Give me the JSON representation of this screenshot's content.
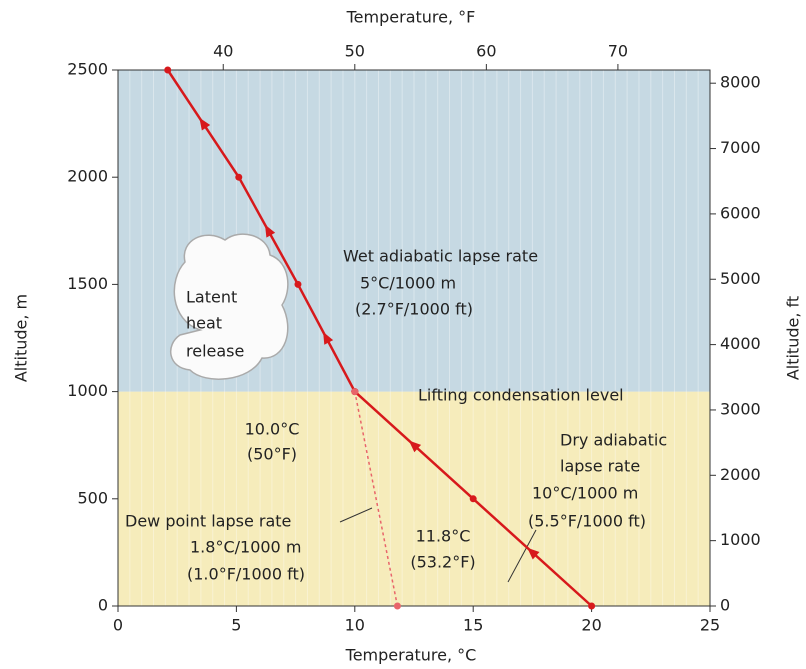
{
  "chart_data": {
    "type": "line",
    "x_label": "Temperature, °C",
    "x2_label": "Temperature, °F",
    "y_label": "Altitude, m",
    "y2_label": "Altitude, ft",
    "xlim": [
      0,
      25
    ],
    "xticks": [
      0,
      5,
      10,
      15,
      20,
      25
    ],
    "x2lim": [
      32,
      77
    ],
    "x2ticks": [
      40,
      50,
      60,
      70
    ],
    "ylim": [
      0,
      2500
    ],
    "yticks": [
      0,
      500,
      1000,
      1500,
      2000,
      2500
    ],
    "y2lim": [
      0,
      8202
    ],
    "y2ticks": [
      0,
      1000,
      2000,
      3000,
      4000,
      5000,
      6000,
      7000,
      8000
    ],
    "zones": [
      {
        "from": 0,
        "to": 1000,
        "color": "#f6ecbb"
      },
      {
        "from": 1000,
        "to": 2500,
        "color": "#c6d9e3"
      }
    ],
    "series": [
      {
        "color": "#d7191c",
        "dashed": false,
        "x": [
          20,
          15,
          10
        ],
        "values": [
          0,
          500,
          1000
        ]
      },
      {
        "color": "#d7191c",
        "dashed": false,
        "x": [
          10,
          7.6,
          5.1,
          2.1
        ],
        "values": [
          1000,
          1500,
          2000,
          2500
        ]
      },
      {
        "color": "#e8646a",
        "dashed": true,
        "x": [
          11.8,
          10
        ],
        "values": [
          0,
          1000
        ]
      }
    ],
    "annotations": [
      "Wet adiabatic lapse rate",
      "5°C/1000 m",
      "(2.7°F/1000 ft)",
      "Lifting condensation level",
      "10.0°C",
      "(50°F)",
      "Dry adiabatic",
      "lapse rate",
      "10°C/1000 m",
      "(5.5°F/1000 ft)",
      "11.8°C",
      "(53.2°F)",
      "Dew point lapse rate",
      "1.8°C/1000 m",
      "(1.0°F/1000 ft)",
      "Latent",
      "heat",
      "release"
    ]
  }
}
